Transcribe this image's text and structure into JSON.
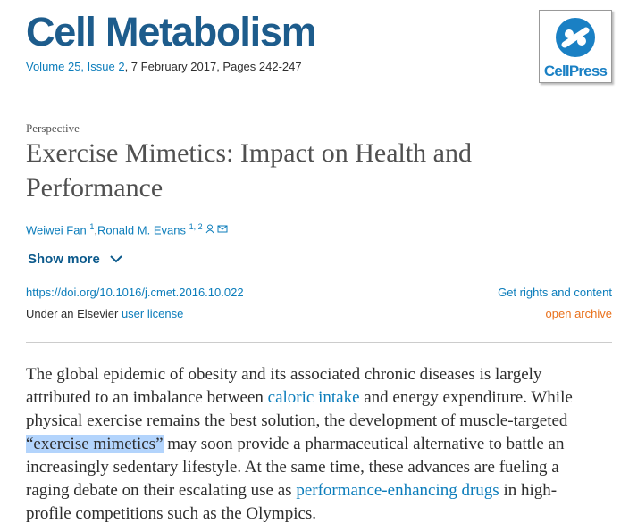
{
  "header": {
    "journal": "Cell Metabolism",
    "volume_link": "Volume 25, Issue 2",
    "citation_rest": ", 7 February 2017, Pages 242-247",
    "logo_text": "CellPress"
  },
  "article": {
    "type": "Perspective",
    "title": "Exercise Mimetics: Impact on Health and Performance",
    "authors": [
      {
        "name": "Weiwei Fan",
        "sup": "1",
        "sep": ","
      },
      {
        "name": "Ronald M. Evans",
        "sup": "1, 2"
      }
    ],
    "show_more": "Show more",
    "doi": "https://doi.org/10.1016/j.cmet.2016.10.022",
    "rights": "Get rights and content",
    "license_prefix": "Under an Elsevier",
    "license_link": "user license",
    "access": "open archive"
  },
  "abstract": {
    "segments": [
      {
        "kind": "text",
        "text": "The global epidemic of obesity and its associated chronic diseases is largely attributed to an imbalance between "
      },
      {
        "kind": "link",
        "text": "caloric intake"
      },
      {
        "kind": "text",
        "text": " and energy expenditure. While physical exercise remains the best solution, the development of muscle-targeted "
      },
      {
        "kind": "highlight",
        "text": "“exercise mimetics”"
      },
      {
        "kind": "text",
        "text": " may soon provide a pharmaceutical alternative to battle an increasingly sedentary lifestyle. At the same time, these advances are fueling a raging debate on their escalating use as "
      },
      {
        "kind": "link",
        "text": "performance-enhancing drugs"
      },
      {
        "kind": "text",
        "text": " in high-profile competitions such as the Olympics."
      }
    ]
  }
}
